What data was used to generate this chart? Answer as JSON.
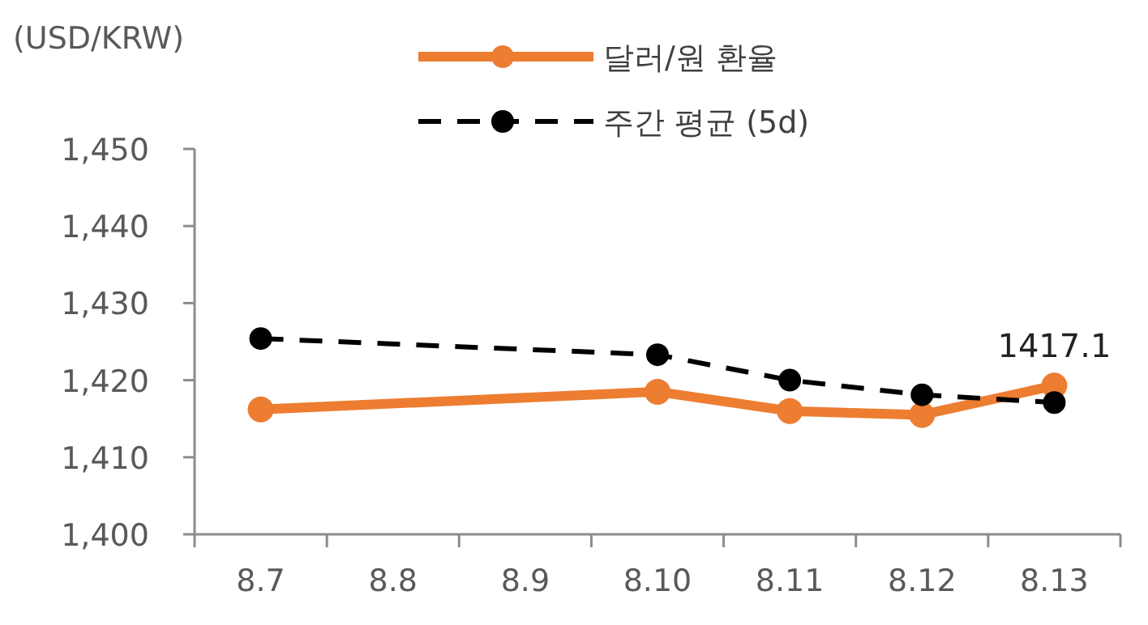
{
  "chart_data": {
    "type": "line",
    "ylabel": "(USD/KRW)",
    "categories": [
      "8.7",
      "8.8",
      "8.9",
      "8.10",
      "8.11",
      "8.12",
      "8.13"
    ],
    "series": [
      {
        "name": "달러/원 환율",
        "color": "#ed7d31",
        "line_style": "solid",
        "values": [
          1416.2,
          null,
          null,
          1418.5,
          1416.0,
          1415.5,
          1419.3
        ]
      },
      {
        "name": "주간 평균 (5d)",
        "color": "#000000",
        "line_style": "dashed",
        "values": [
          1425.4,
          null,
          null,
          1423.3,
          1420.0,
          1418.1,
          1417.1
        ],
        "value_labels": [
          null,
          null,
          null,
          null,
          null,
          null,
          "1417.1"
        ]
      }
    ],
    "ylim": [
      1400,
      1450
    ],
    "yticks": [
      {
        "value": 1400,
        "label": "1,400"
      },
      {
        "value": 1410,
        "label": "1,410"
      },
      {
        "value": 1420,
        "label": "1,420"
      },
      {
        "value": 1430,
        "label": "1,430"
      },
      {
        "value": 1440,
        "label": "1,440"
      },
      {
        "value": 1450,
        "label": "1,450"
      }
    ],
    "marker": "circle",
    "legend": "top",
    "grid": false
  }
}
